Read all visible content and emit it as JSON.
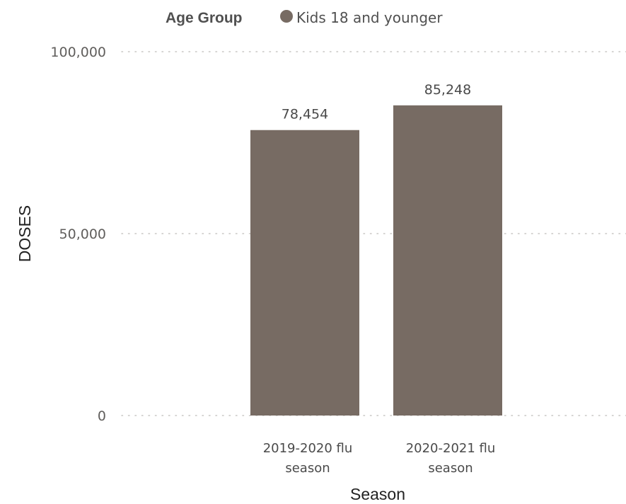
{
  "legend": {
    "title": "Age Group",
    "item_label": "Kids 18 and younger"
  },
  "chart_data": {
    "type": "bar",
    "categories": [
      [
        "2019-2020 flu",
        "season"
      ],
      [
        "2020-2021 flu",
        "season"
      ]
    ],
    "series": [
      {
        "name": "Kids 18 and younger",
        "values": [
          78454,
          85248
        ],
        "color": "#776B63"
      }
    ],
    "value_labels": [
      "78,454",
      "85,248"
    ],
    "xlabel": "Season",
    "ylabel": "DOSES",
    "ylim": [
      0,
      100000
    ],
    "yticks": [
      0,
      50000,
      100000
    ],
    "ytick_labels": [
      "0",
      "50,000",
      "100,000"
    ],
    "grid": true,
    "legend_position": "top-center"
  }
}
